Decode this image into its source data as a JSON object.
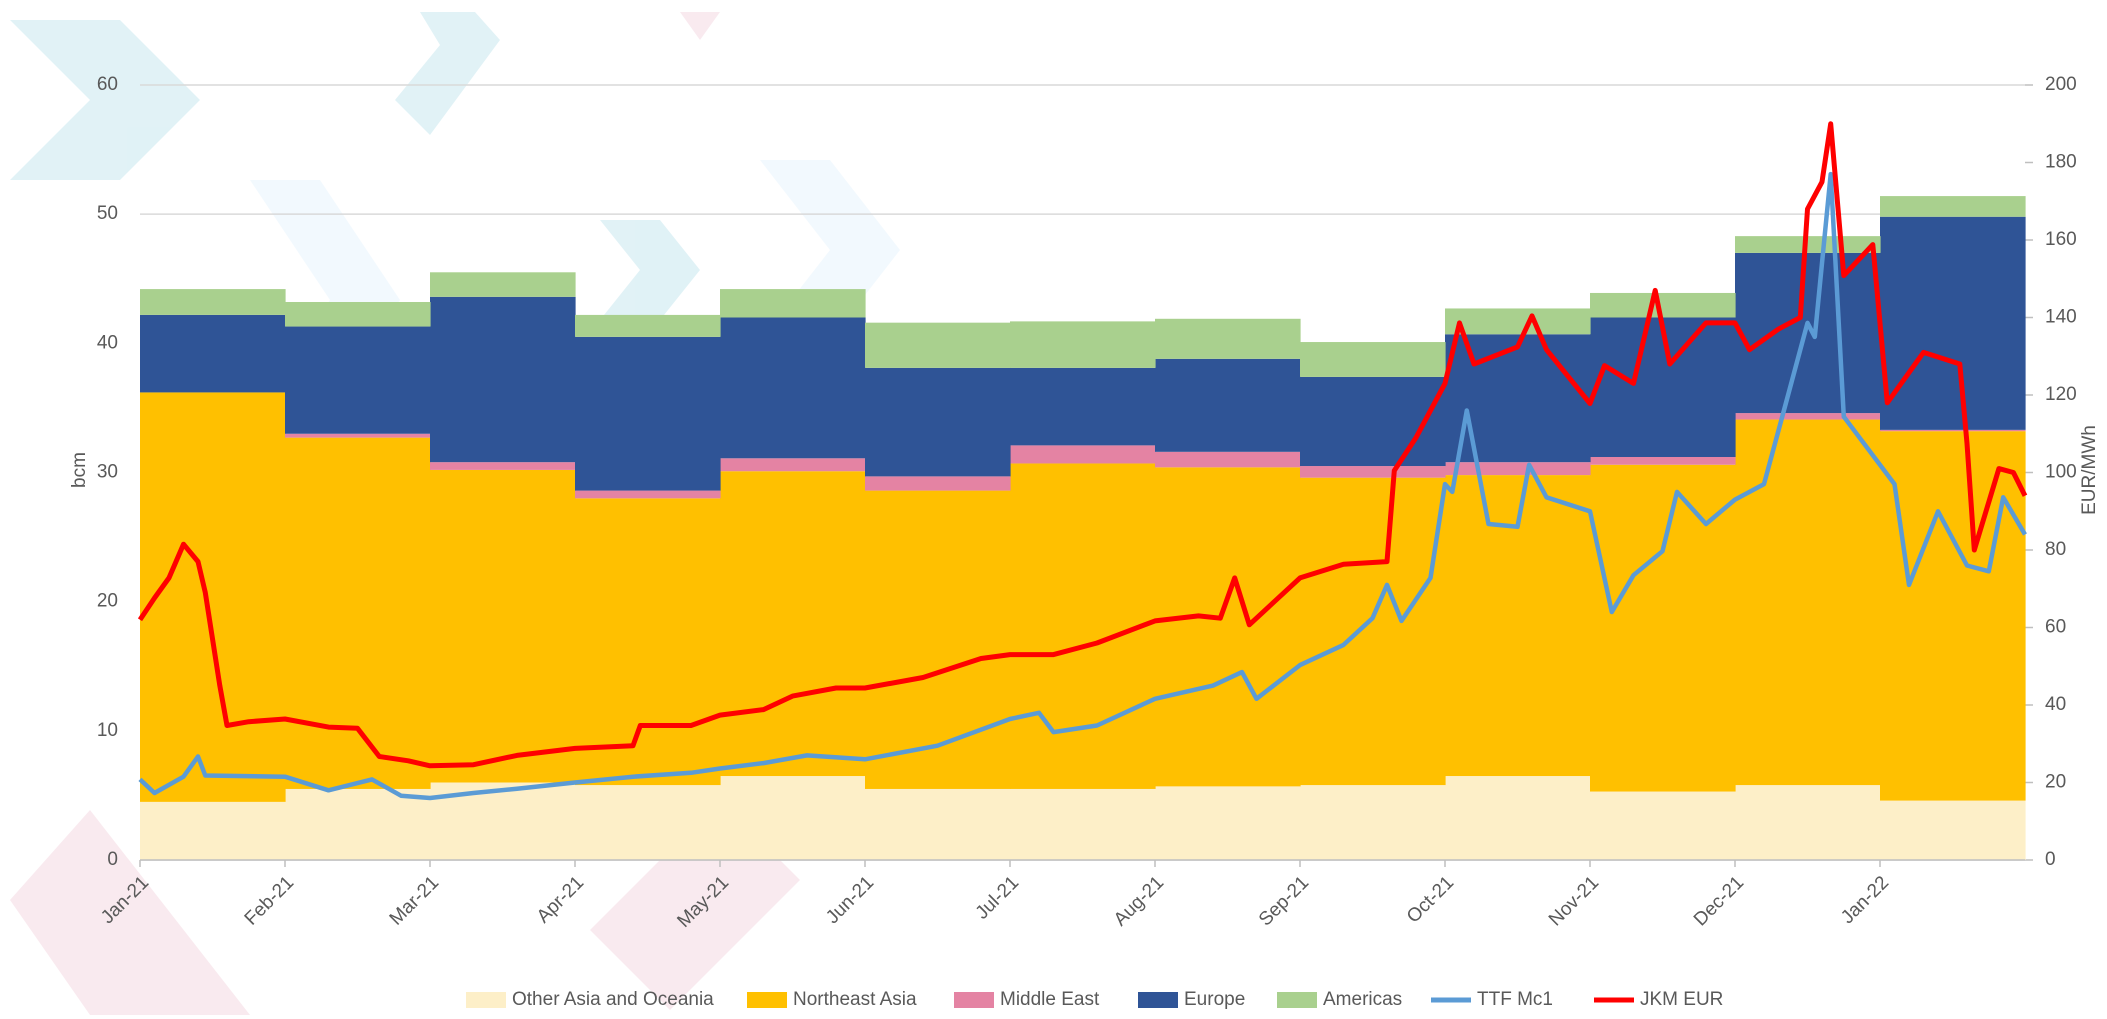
{
  "chart_data": {
    "type": "area",
    "ylabel": "bcm",
    "y2label": "EUR/MWh",
    "xlim": [
      0,
      13
    ],
    "xticks": [
      {
        "value": 0,
        "label": "Jan-21"
      },
      {
        "value": 1,
        "label": "Feb-21"
      },
      {
        "value": 2,
        "label": "Mar-21"
      },
      {
        "value": 3,
        "label": "Apr-21"
      },
      {
        "value": 4,
        "label": "May-21"
      },
      {
        "value": 5,
        "label": "Jun-21"
      },
      {
        "value": 6,
        "label": "Jul-21"
      },
      {
        "value": 7,
        "label": "Aug-21"
      },
      {
        "value": 8,
        "label": "Sep-21"
      },
      {
        "value": 9,
        "label": "Oct-21"
      },
      {
        "value": 10,
        "label": "Nov-21"
      },
      {
        "value": 11,
        "label": "Dec-21"
      },
      {
        "value": 12,
        "label": "Jan-22"
      }
    ],
    "ylim": [
      0,
      60
    ],
    "yticks": [
      0,
      10,
      20,
      30,
      40,
      50,
      60
    ],
    "y2lim": [
      0,
      200
    ],
    "y2ticks": [
      0,
      20,
      40,
      60,
      80,
      100,
      120,
      140,
      160,
      180,
      200
    ],
    "grid": true,
    "legend": "bottom",
    "series": [
      {
        "name": "Other Asia and Oceania",
        "type": "area",
        "color": "#fdefc8",
        "values": [
          4.5,
          5.5,
          6.0,
          5.8,
          6.5,
          5.5,
          5.5,
          5.7,
          5.8,
          6.5,
          5.3,
          5.8,
          4.6
        ]
      },
      {
        "name": "Northeast Asia",
        "type": "area",
        "color": "#ffc000",
        "values": [
          31.7,
          27.2,
          24.2,
          22.2,
          23.6,
          23.1,
          25.2,
          24.7,
          23.8,
          23.3,
          25.3,
          28.3,
          28.6
        ]
      },
      {
        "name": "Middle East",
        "type": "area",
        "color": "#e483a3",
        "values": [
          0,
          0.3,
          0.6,
          0.6,
          1.0,
          1.1,
          1.4,
          1.2,
          0.9,
          1.0,
          0.6,
          0.5,
          0.1
        ]
      },
      {
        "name": "Europe",
        "type": "area",
        "color": "#2f5496",
        "values": [
          6.0,
          8.3,
          12.8,
          11.9,
          10.9,
          8.4,
          6.0,
          7.2,
          6.9,
          9.9,
          10.8,
          12.4,
          16.5
        ]
      },
      {
        "name": "Americas",
        "type": "area",
        "color": "#a9d08e",
        "values": [
          2.0,
          1.9,
          1.9,
          1.7,
          2.2,
          3.5,
          3.6,
          3.1,
          2.7,
          2.0,
          1.9,
          1.3,
          1.6
        ]
      },
      {
        "name": "TTF Mc1",
        "type": "line",
        "axis": "y2",
        "color": "#5b9bd5",
        "x": [
          0,
          0.1,
          0.3,
          0.4,
          0.45,
          1.0,
          1.3,
          1.6,
          1.8,
          2.0,
          2.3,
          2.6,
          3.0,
          3.4,
          3.8,
          4.0,
          4.3,
          4.6,
          5.0,
          5.5,
          6.0,
          6.2,
          6.3,
          6.6,
          7.0,
          7.4,
          7.6,
          7.7,
          8.0,
          8.3,
          8.5,
          8.6,
          8.7,
          8.9,
          9.0,
          9.05,
          9.15,
          9.3,
          9.5,
          9.58,
          9.7,
          10.0,
          10.15,
          10.3,
          10.5,
          10.6,
          10.8,
          11.0,
          11.2,
          11.35,
          11.5,
          11.55,
          11.66,
          11.75,
          12.1,
          12.2,
          12.4,
          12.6,
          12.75,
          12.85,
          13.0
        ],
        "values": [
          20.8,
          17.3,
          21.5,
          26.7,
          21.8,
          21.5,
          18,
          20.8,
          16.6,
          16,
          17.3,
          18.4,
          20,
          21.5,
          22.5,
          23.6,
          25,
          27,
          26,
          29.5,
          36.4,
          38,
          33,
          34.7,
          41.6,
          45,
          48.5,
          41.6,
          50.3,
          55.5,
          62.4,
          71,
          61.7,
          72.8,
          97,
          95,
          116,
          86.7,
          86,
          102,
          93.6,
          90,
          64,
          73.5,
          79.7,
          95,
          86.7,
          93,
          97,
          117.8,
          138.6,
          135,
          177,
          114.4,
          97,
          71,
          90,
          76,
          74.5,
          93.6,
          84
        ]
      },
      {
        "name": "JKM EUR",
        "type": "line",
        "axis": "y2",
        "color": "#ff0000",
        "x": [
          0,
          0.1,
          0.2,
          0.3,
          0.4,
          0.45,
          0.55,
          0.6,
          0.75,
          1.0,
          1.3,
          1.5,
          1.65,
          1.85,
          2.0,
          2.3,
          2.6,
          3.0,
          3.4,
          3.45,
          3.8,
          4.0,
          4.3,
          4.5,
          4.8,
          5.0,
          5.4,
          5.8,
          6.0,
          6.3,
          6.6,
          7.0,
          7.3,
          7.45,
          7.55,
          7.65,
          8.0,
          8.3,
          8.6,
          8.65,
          8.8,
          9.0,
          9.1,
          9.2,
          9.5,
          9.6,
          9.7,
          10.0,
          10.1,
          10.3,
          10.45,
          10.55,
          10.8,
          11.0,
          11.1,
          11.3,
          11.45,
          11.5,
          11.6,
          11.66,
          11.75,
          11.95,
          12.05,
          12.3,
          12.55,
          12.6,
          12.65,
          12.82,
          12.92,
          13.0
        ],
        "values": [
          62,
          67.6,
          72.8,
          81.5,
          77,
          69,
          45,
          34.7,
          35.7,
          36.4,
          34.3,
          34,
          26.7,
          25.6,
          24.3,
          24.6,
          27,
          28.8,
          29.5,
          34.7,
          34.7,
          37.4,
          38.8,
          42.3,
          44.4,
          44.4,
          47.1,
          52,
          53,
          53,
          56,
          61.7,
          63,
          62.4,
          72.8,
          60.7,
          72.8,
          76.3,
          77,
          100.5,
          109,
          123,
          138.6,
          128,
          132.4,
          140.4,
          131.7,
          117.8,
          127.6,
          123,
          147,
          128,
          138.6,
          138.6,
          131.7,
          137,
          140,
          168,
          175,
          190,
          150.8,
          158.8,
          118,
          131,
          128,
          107.5,
          80,
          101,
          100,
          94
        ]
      }
    ]
  }
}
